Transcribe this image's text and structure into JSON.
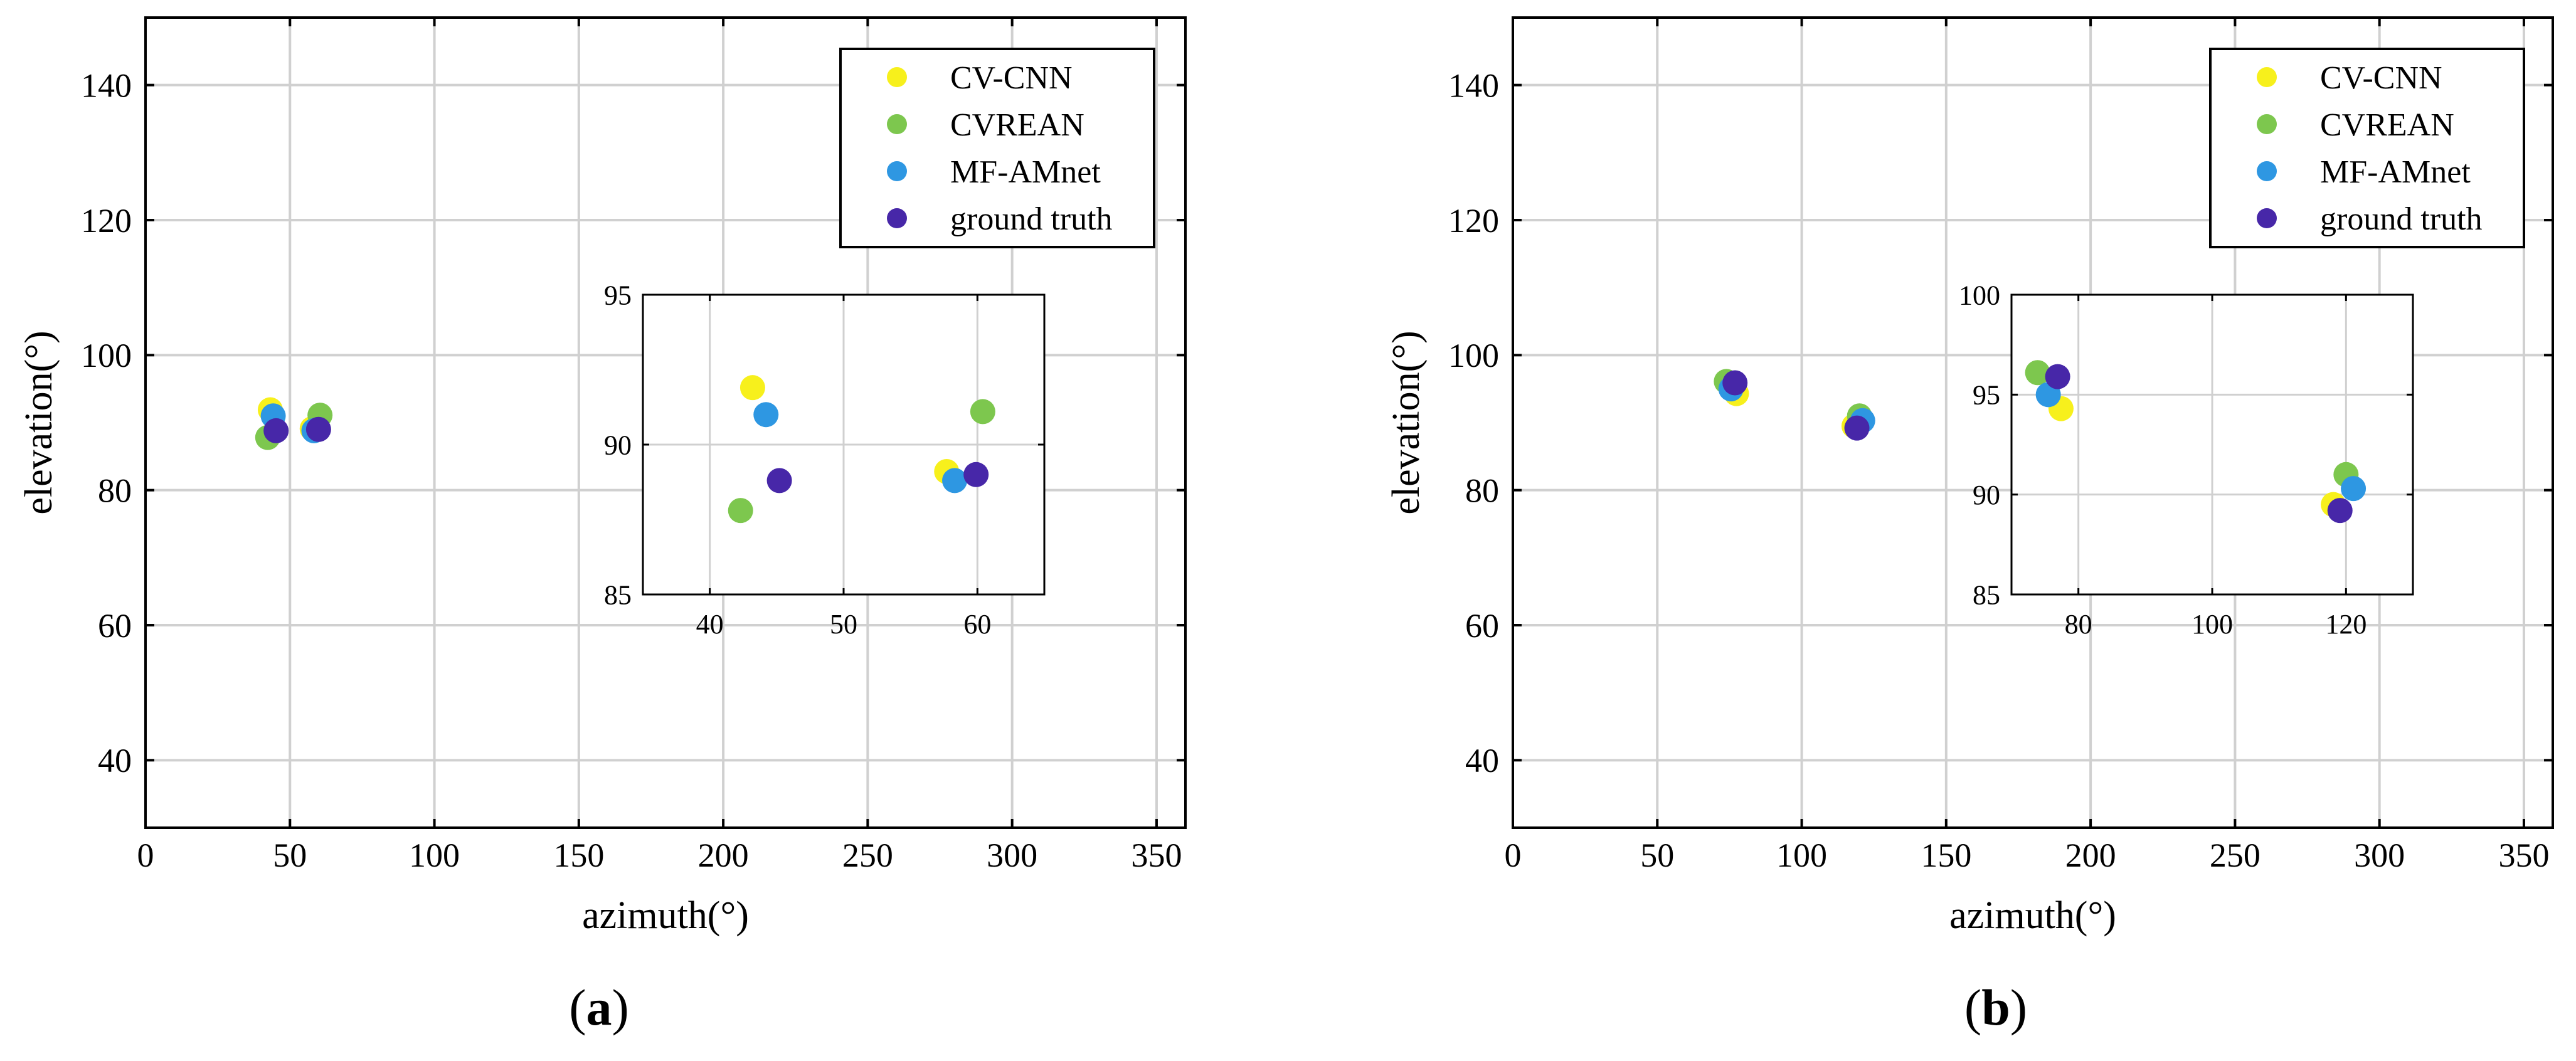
{
  "colors": {
    "cv_cnn": "#f7f01c",
    "cvrean": "#7dc74e",
    "mf_amnet": "#2e97e2",
    "ground_truth": "#4727a8",
    "grid": "#d0d0d0",
    "axis": "#000000"
  },
  "chart_data": [
    {
      "type": "scatter",
      "panel_label": "a",
      "title": "",
      "xlabel": "azimuth(°)",
      "ylabel": "elevation(°)",
      "xlim": [
        0,
        360
      ],
      "ylim": [
        30,
        150
      ],
      "xticks": [
        0,
        50,
        100,
        150,
        200,
        250,
        300,
        350
      ],
      "yticks": [
        40,
        60,
        80,
        100,
        120,
        140
      ],
      "grid": true,
      "legend_position": "top-right",
      "series": [
        {
          "name": "CV-CNN",
          "color_key": "cv_cnn",
          "points": [
            [
              43.2,
              91.9
            ],
            [
              57.7,
              89.1
            ]
          ]
        },
        {
          "name": "CVREAN",
          "color_key": "cvrean",
          "points": [
            [
              42.3,
              87.8
            ],
            [
              60.4,
              91.1
            ]
          ]
        },
        {
          "name": "MF-AMnet",
          "color_key": "mf_amnet",
          "points": [
            [
              44.2,
              91.0
            ],
            [
              58.3,
              88.8
            ]
          ]
        },
        {
          "name": "ground truth",
          "color_key": "ground_truth",
          "points": [
            [
              45.2,
              88.8
            ],
            [
              59.9,
              89.0
            ]
          ]
        }
      ],
      "inset": {
        "xlim": [
          35,
          65
        ],
        "ylim": [
          85,
          95
        ],
        "xticks": [
          40,
          50,
          60
        ],
        "yticks": [
          85,
          90,
          95
        ],
        "grid": true
      }
    },
    {
      "type": "scatter",
      "panel_label": "b",
      "title": "",
      "xlabel": "azimuth(°)",
      "ylabel": "elevation(°)",
      "xlim": [
        0,
        360
      ],
      "ylim": [
        30,
        150
      ],
      "xticks": [
        0,
        50,
        100,
        150,
        200,
        250,
        300,
        350
      ],
      "yticks": [
        40,
        60,
        80,
        100,
        120,
        140
      ],
      "grid": true,
      "legend_position": "top-right",
      "series": [
        {
          "name": "CV-CNN",
          "color_key": "cv_cnn",
          "points": [
            [
              77.4,
              94.3
            ],
            [
              118.1,
              89.5
            ]
          ]
        },
        {
          "name": "CVREAN",
          "color_key": "cvrean",
          "points": [
            [
              73.9,
              96.1
            ],
            [
              120.0,
              91.0
            ]
          ]
        },
        {
          "name": "MF-AMnet",
          "color_key": "mf_amnet",
          "points": [
            [
              75.5,
              95.0
            ],
            [
              121.1,
              90.3
            ]
          ]
        },
        {
          "name": "ground truth",
          "color_key": "ground_truth",
          "points": [
            [
              76.9,
              95.9
            ],
            [
              119.1,
              89.2
            ]
          ]
        }
      ],
      "inset": {
        "xlim": [
          70,
          130
        ],
        "ylim": [
          85,
          100
        ],
        "xticks": [
          80,
          100,
          120
        ],
        "yticks": [
          85,
          90,
          95,
          100
        ],
        "grid": true
      }
    }
  ]
}
